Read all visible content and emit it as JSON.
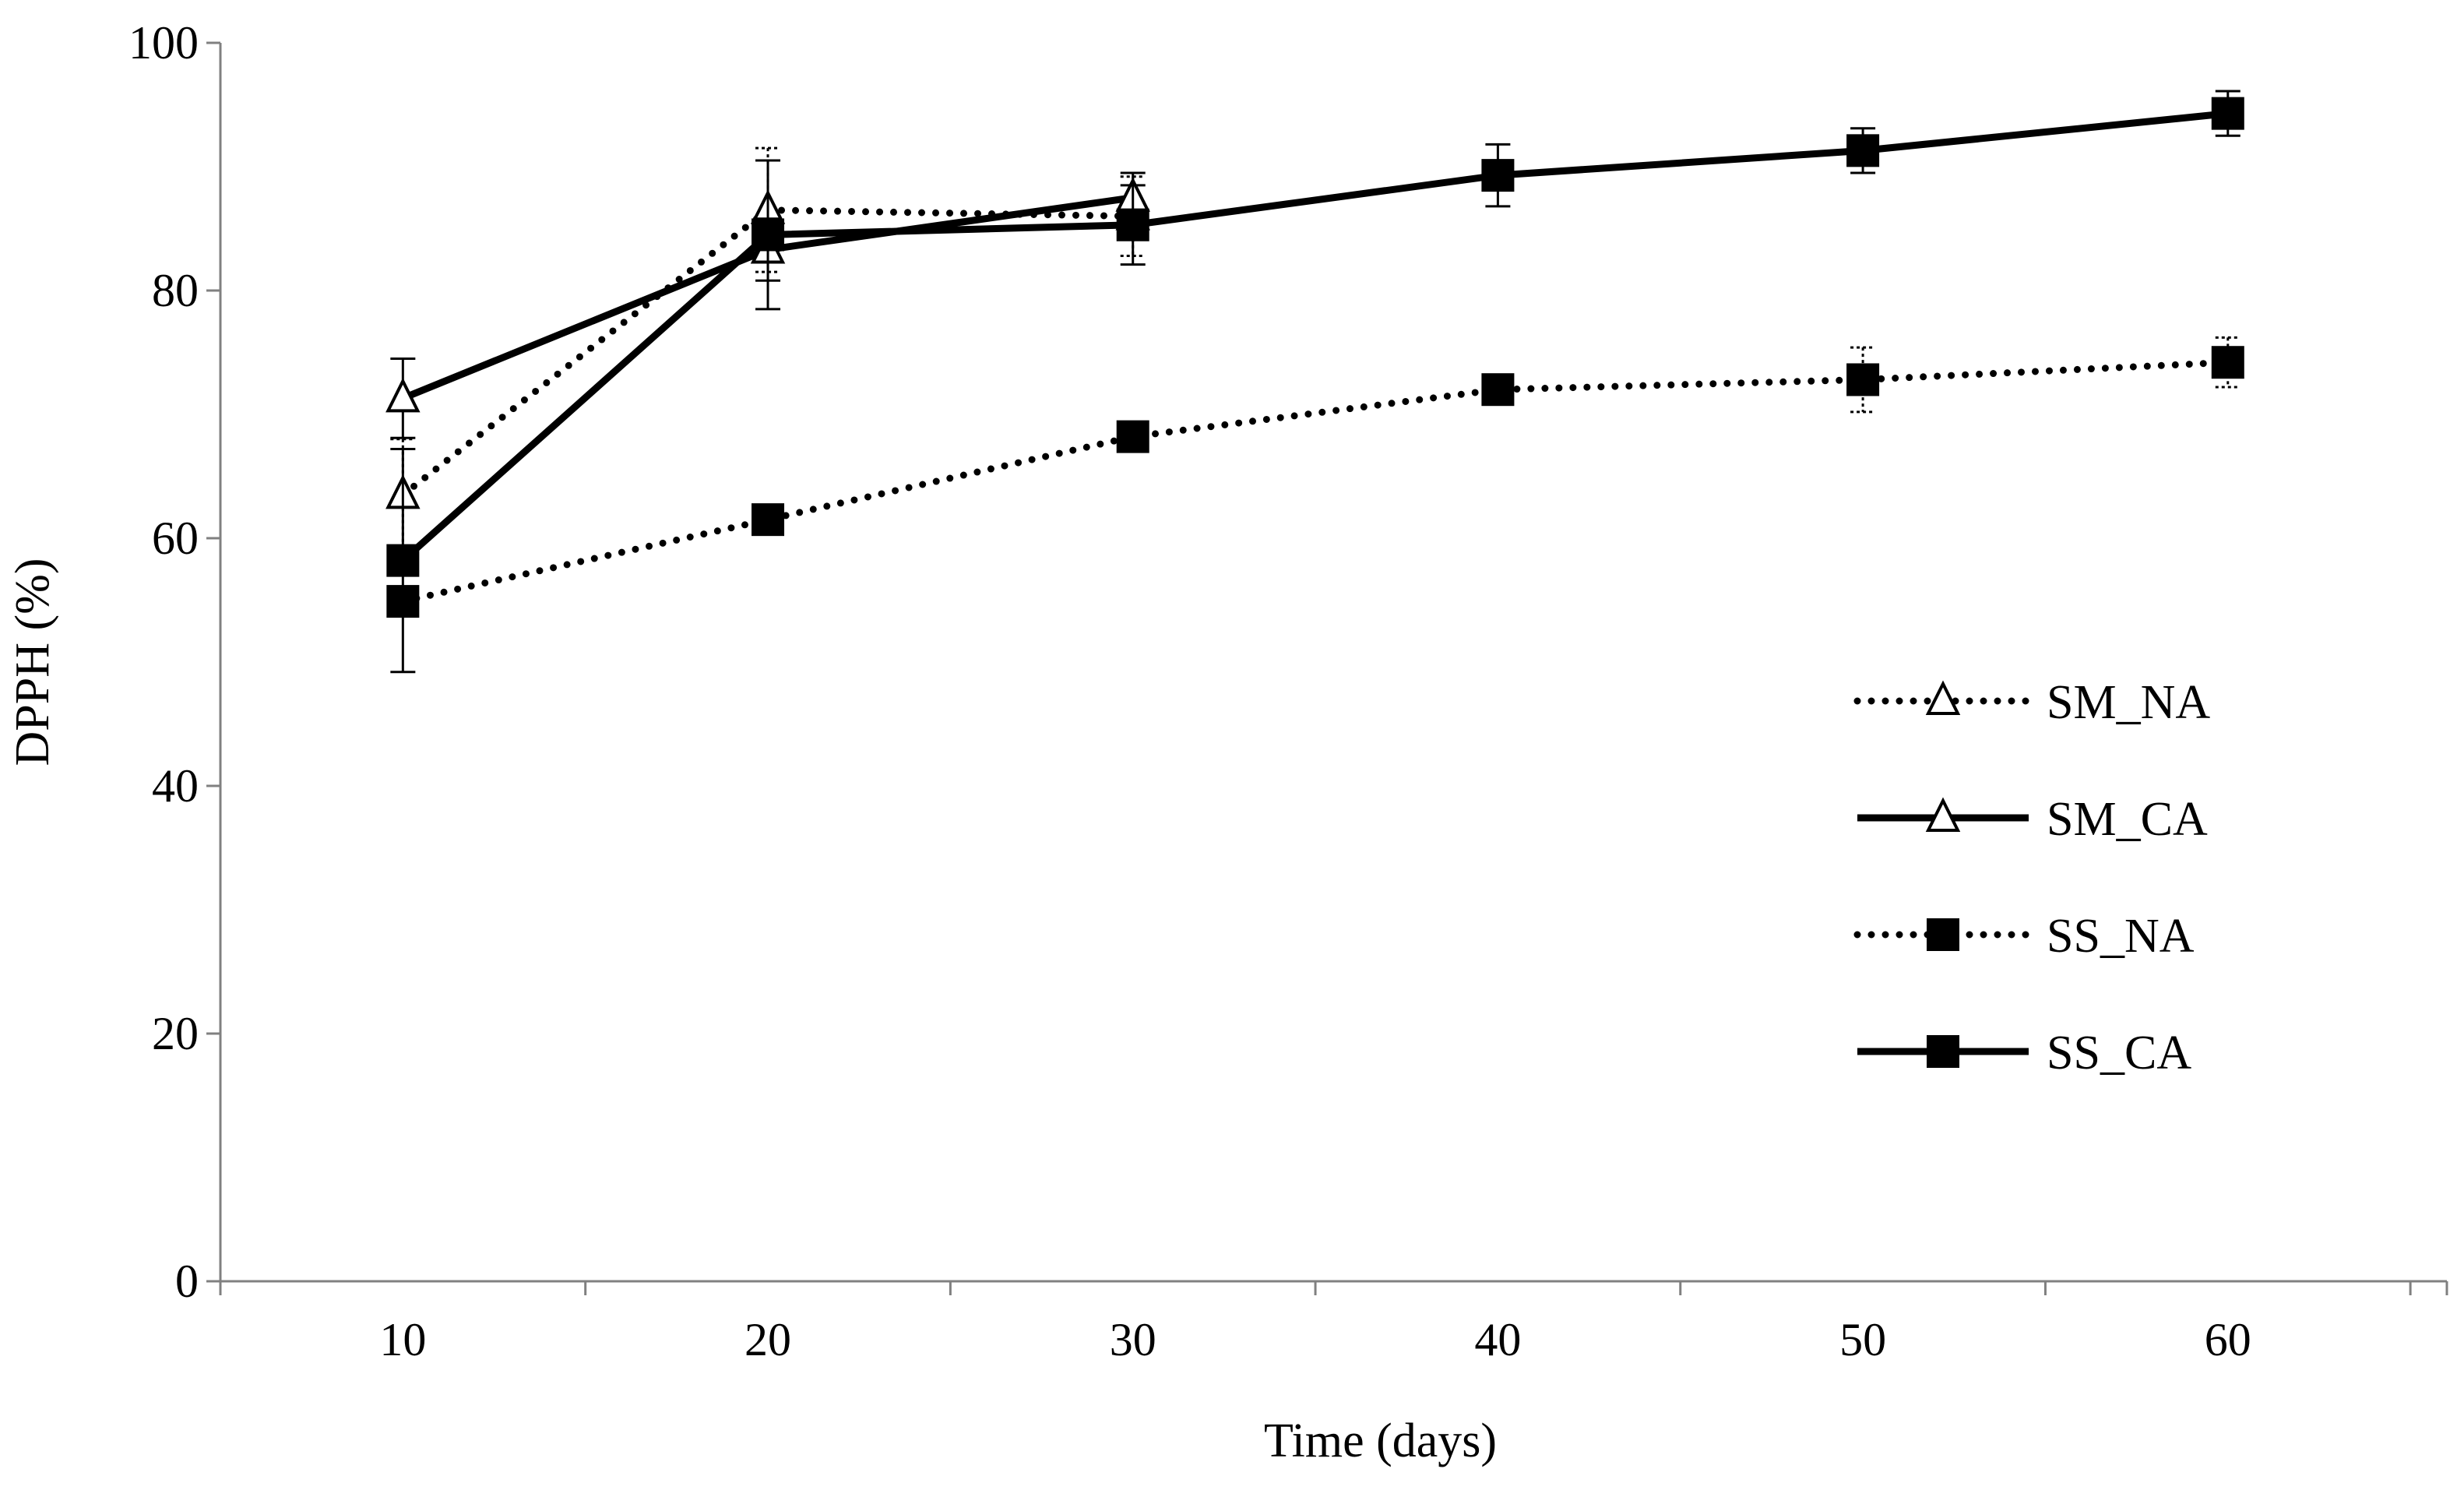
{
  "chart_data": {
    "type": "line",
    "title": "",
    "xlabel": "Time (days)",
    "ylabel": "DPPH (%)",
    "x": [
      10,
      20,
      30,
      40,
      50,
      60
    ],
    "x_ticks": [
      "10",
      "20",
      "30",
      "40",
      "50",
      "60"
    ],
    "y_ticks": [
      "0",
      "20",
      "40",
      "60",
      "80",
      "100"
    ],
    "xlim": [
      5,
      66
    ],
    "ylim": [
      0,
      100
    ],
    "grid": false,
    "legend_position": "right",
    "series": [
      {
        "name": "SM_NA",
        "line_style": "dotted",
        "marker": "open-triangle",
        "x": [
          10,
          20,
          30
        ],
        "values": [
          63.5,
          86.5,
          86.0
        ],
        "errors": [
          4.5,
          5.0,
          3.2
        ]
      },
      {
        "name": "SM_CA",
        "line_style": "solid",
        "marker": "open-triangle",
        "x": [
          10,
          20,
          30
        ],
        "values": [
          71.3,
          83.3,
          87.5
        ],
        "errors": [
          3.2,
          2.5,
          2.0
        ]
      },
      {
        "name": "SS_NA",
        "line_style": "dotted",
        "marker": "filled-square",
        "x": [
          10,
          20,
          30,
          40,
          50,
          60
        ],
        "values": [
          54.9,
          61.5,
          68.2,
          72.0,
          72.8,
          74.2
        ],
        "errors": [
          1.0,
          1.0,
          1.0,
          1.0,
          2.6,
          2.0
        ]
      },
      {
        "name": "SS_CA",
        "line_style": "solid",
        "marker": "filled-square",
        "x": [
          10,
          20,
          30,
          40,
          50,
          60
        ],
        "values": [
          58.2,
          84.5,
          85.3,
          89.3,
          91.3,
          94.3
        ],
        "errors": [
          9.0,
          6.0,
          3.2,
          2.5,
          1.8,
          1.8
        ]
      }
    ]
  }
}
